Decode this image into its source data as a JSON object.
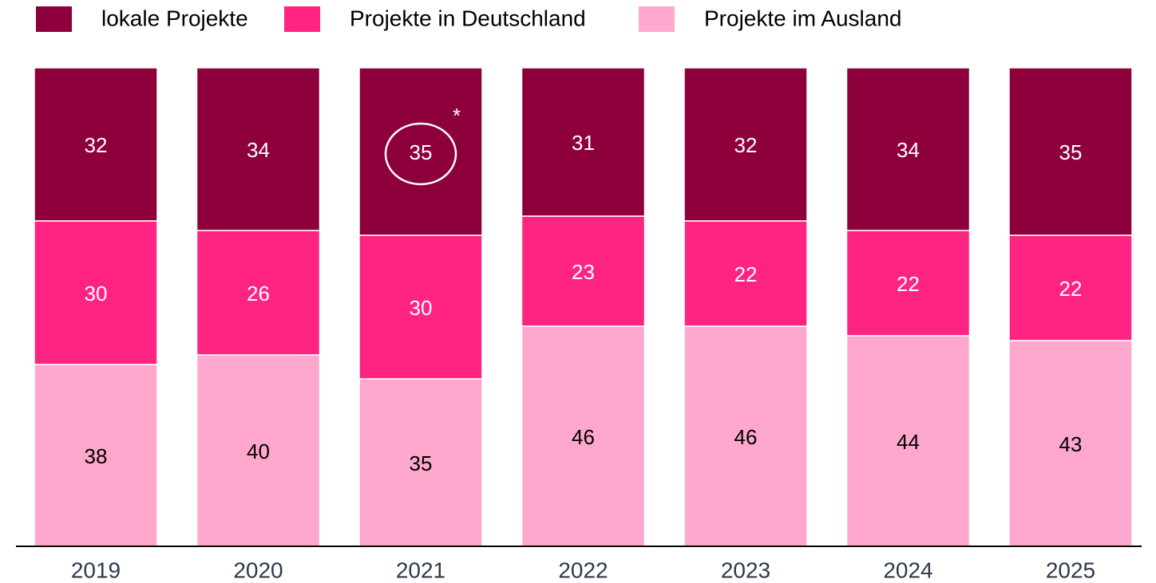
{
  "chart_data": {
    "type": "stacked_bar",
    "categories": [
      "2019",
      "2020",
      "2021",
      "2022",
      "2023",
      "2024",
      "2025"
    ],
    "series": [
      {
        "name": "lokale Projekte",
        "color": "#8e003c",
        "values": [
          32,
          34,
          35,
          31,
          32,
          34,
          35
        ]
      },
      {
        "name": "Projekte in Deutschland",
        "color": "#ff2382",
        "values": [
          30,
          26,
          30,
          23,
          22,
          22,
          22
        ]
      },
      {
        "name": "Projekte im Ausland",
        "color": "#ffa7cd",
        "values": [
          38,
          40,
          35,
          46,
          46,
          44,
          43
        ]
      }
    ],
    "ylim": [
      0,
      100
    ],
    "annotation": "*"
  }
}
